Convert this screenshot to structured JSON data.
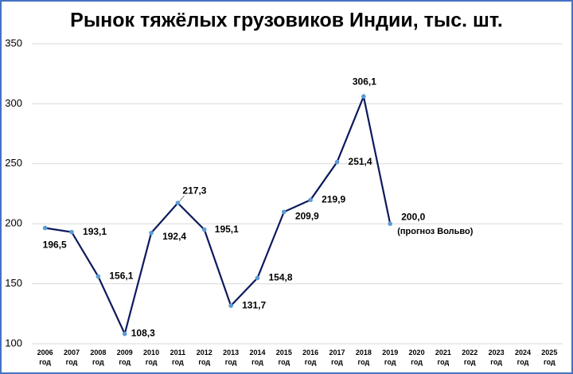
{
  "chart_data": {
    "type": "line",
    "title": "Рынок тяжёлых грузовиков Индии, тыс. шт.",
    "categories": [
      "2006 год",
      "2007 год",
      "2008 год",
      "2009 год",
      "2010 год",
      "2011 год",
      "2012 год",
      "2013 год",
      "2014 год",
      "2015 год",
      "2016 год",
      "2017 год",
      "2018 год",
      "2019 год",
      "2020 год",
      "2021 год",
      "2022 год",
      "2023 год",
      "2024 год",
      "2025 год"
    ],
    "series": [
      {
        "name": null,
        "color": "#0d1a5c",
        "marker_color": "#5b9bd5",
        "values": [
          196.5,
          193.1,
          156.1,
          108.3,
          192.4,
          217.3,
          195.1,
          131.7,
          154.8,
          209.9,
          219.9,
          251.4,
          306.1,
          200.0,
          null,
          null,
          null,
          null,
          null,
          null
        ],
        "value_labels": [
          "196,5",
          "193,1",
          "156,1",
          "108,3",
          "192,4",
          "217,3",
          "195,1",
          "131,7",
          "154,8",
          "209,9",
          "219,9",
          "251,4",
          "306,1",
          "200,0",
          null,
          null,
          null,
          null,
          null,
          null
        ]
      }
    ],
    "annotations": [
      "(прогноз Вольво)"
    ],
    "ylim": [
      100,
      350
    ],
    "yticks": [
      100,
      150,
      200,
      250,
      300,
      350
    ],
    "grid": true
  }
}
